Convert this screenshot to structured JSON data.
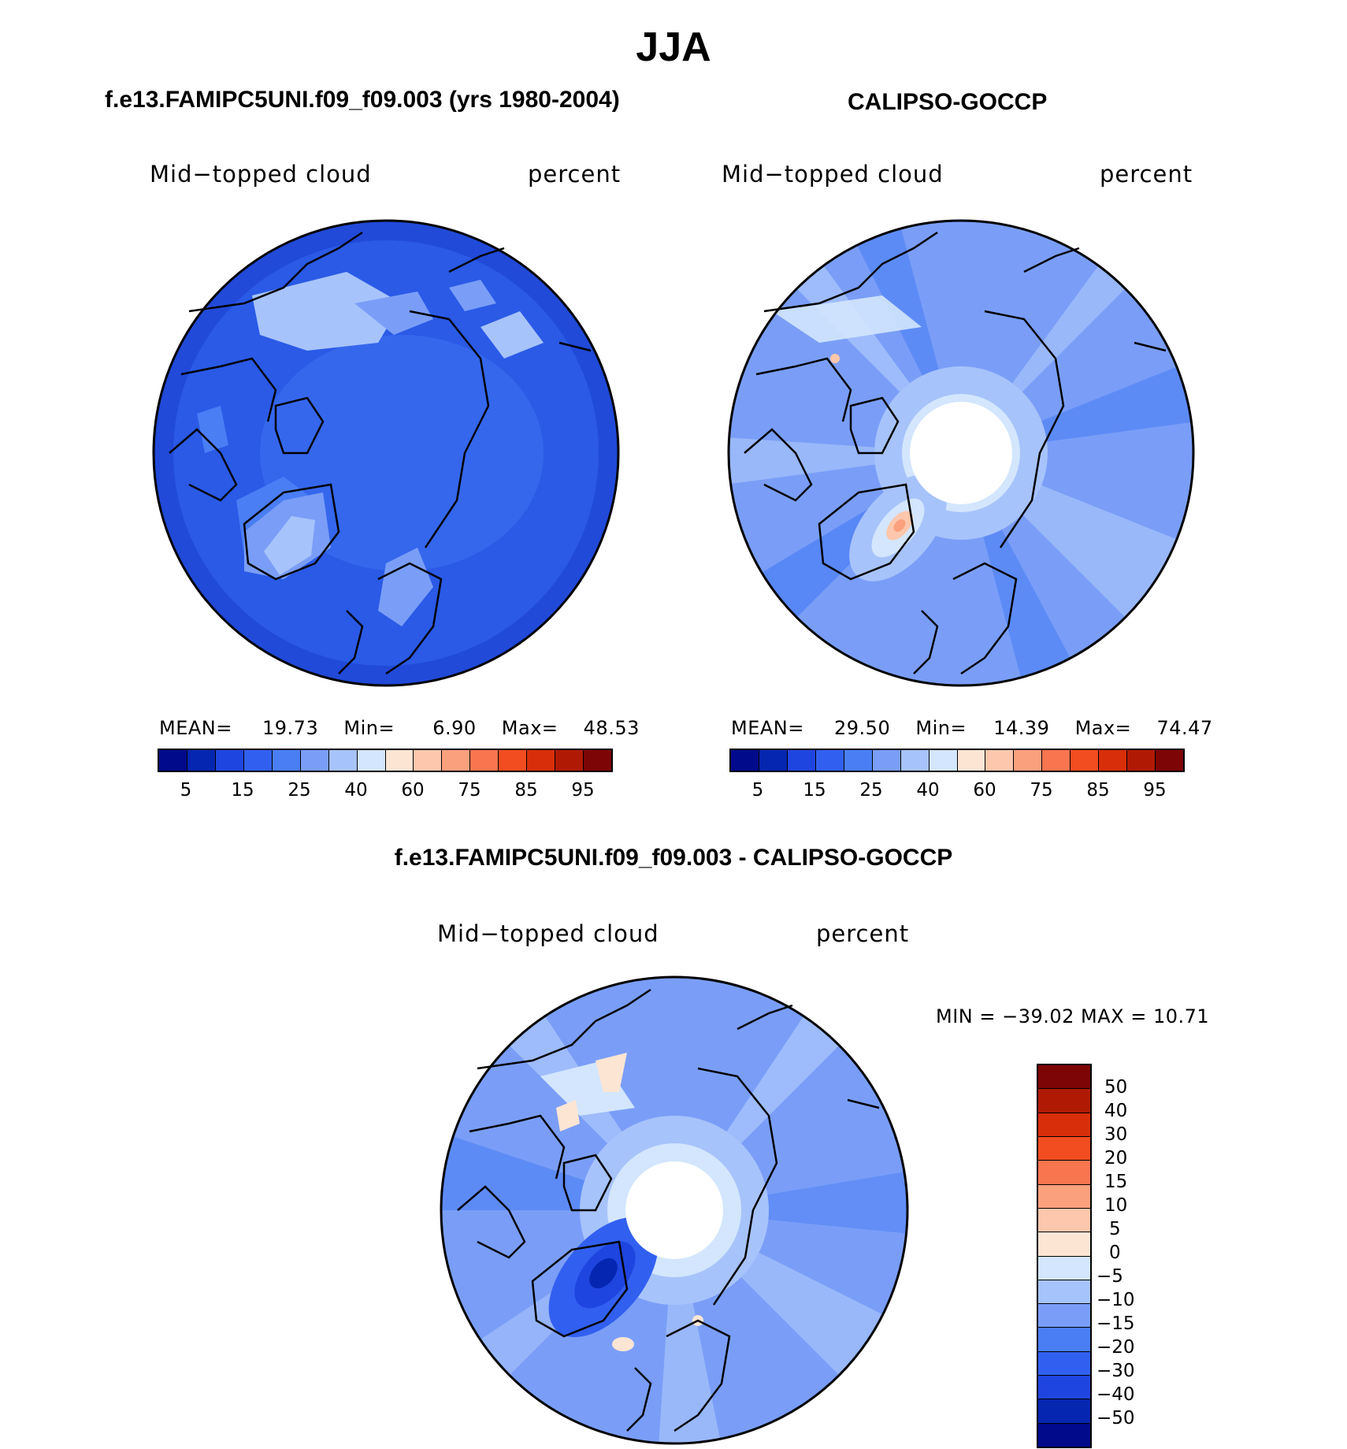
{
  "title": "JJA",
  "panels": {
    "model": {
      "header": "f.e13.FAMIPC5UNI.f09_f09.003 (yrs 1980-2004)",
      "variable": "Mid−topped cloud",
      "units": "percent",
      "mean_label": "MEAN=",
      "mean": "19.73",
      "min_label": "Min=",
      "min": "6.90",
      "max_label": "Max=",
      "max": "48.53"
    },
    "obs": {
      "header": "CALIPSO-GOCCP",
      "variable": "Mid−topped cloud",
      "units": "percent",
      "mean_label": "MEAN=",
      "mean": "29.50",
      "min_label": "Min=",
      "min": "14.39",
      "max_label": "Max=",
      "max": "74.47"
    },
    "diff": {
      "header": "f.e13.FAMIPC5UNI.f09_f09.003 - CALIPSO-GOCCP",
      "variable": "Mid−topped cloud",
      "units": "percent",
      "minmax_text": "MIN = −39.02 MAX =   10.71"
    }
  },
  "abs_colorbar": {
    "colors": [
      "#000a8a",
      "#0526b0",
      "#1f45e0",
      "#3160f0",
      "#4a7ef5",
      "#7a9ef7",
      "#a7c3fb",
      "#d3e6fd",
      "#fde5d4",
      "#fcc7ac",
      "#fba07d",
      "#f97550",
      "#f24d20",
      "#d92e0a",
      "#b01a05",
      "#7e0505"
    ],
    "ticks": [
      "5",
      "15",
      "25",
      "40",
      "60",
      "75",
      "85",
      "95"
    ]
  },
  "diff_colorbar": {
    "colors": [
      "#7e0505",
      "#b01a05",
      "#d92e0a",
      "#f24d20",
      "#f97550",
      "#fba07d",
      "#fcc7ac",
      "#fde5d4",
      "#d3e6fd",
      "#a7c3fb",
      "#7a9ef7",
      "#4a7ef5",
      "#3160f0",
      "#1f45e0",
      "#0526b0",
      "#000a8a"
    ],
    "ticks": [
      "50",
      "40",
      "30",
      "20",
      "15",
      "10",
      "5",
      "0",
      "−5",
      "−10",
      "−15",
      "−20",
      "−30",
      "−40",
      "−50"
    ]
  }
}
